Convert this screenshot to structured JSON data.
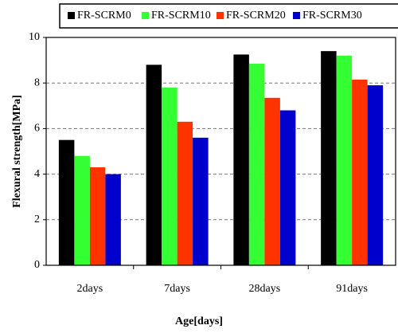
{
  "chart_data": {
    "type": "bar",
    "xlabel": "Age[days]",
    "ylabel": "Flexural strength[MPa]",
    "categories": [
      "2days",
      "7days",
      "28days",
      "91days"
    ],
    "series": [
      {
        "name": "FR-SCRM0",
        "color": "#000000",
        "values": [
          5.5,
          8.8,
          9.25,
          9.4
        ]
      },
      {
        "name": "FR-SCRM10",
        "color": "#33ff33",
        "values": [
          4.8,
          7.8,
          8.85,
          9.2
        ]
      },
      {
        "name": "FR-SCRM20",
        "color": "#ff3300",
        "values": [
          4.3,
          6.3,
          7.35,
          8.15
        ]
      },
      {
        "name": "FR-SCRM30",
        "color": "#0000cc",
        "values": [
          4.0,
          5.6,
          6.8,
          7.9
        ]
      }
    ],
    "ylim": [
      0,
      10
    ],
    "yticks": [
      0,
      2,
      4,
      6,
      8,
      10
    ],
    "grid": true,
    "legend": "top"
  }
}
